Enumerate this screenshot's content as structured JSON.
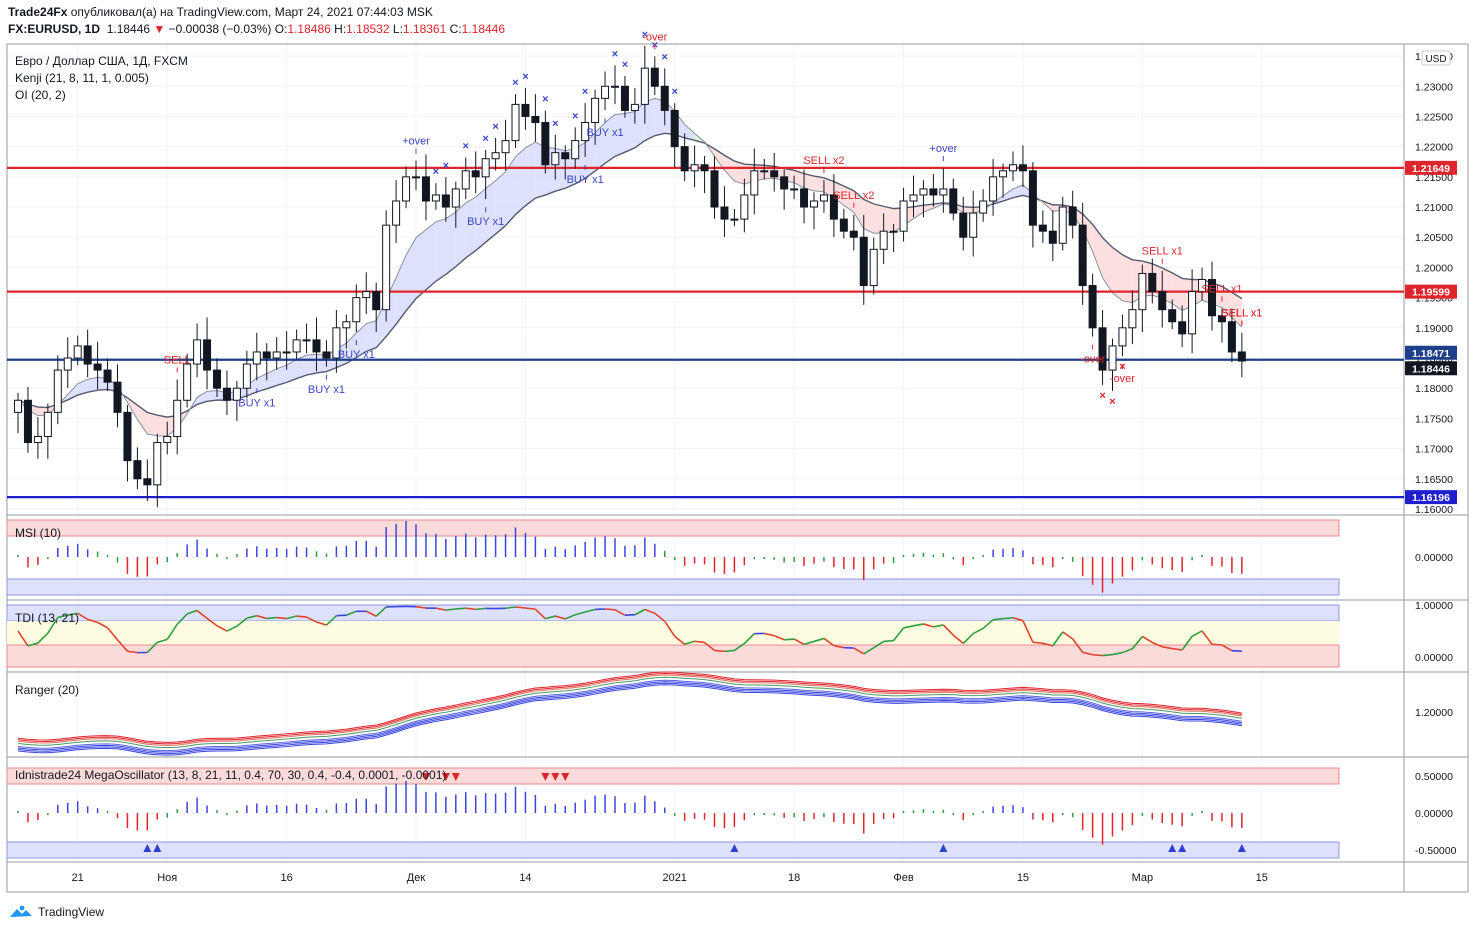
{
  "header": {
    "author": "Trade24Fx",
    "published_text": " опубликовал(а) на TradingView.com, Март 24, 2021 07:44:03 MSK",
    "symbol": "FX:EURUSD, 1D",
    "last": "1.18446",
    "change_arrow": "▼",
    "change": "−0.00038 (−0.03%)",
    "o_label": "O:",
    "o": "1.18486",
    "h_label": "H:",
    "h": "1.18532",
    "l_label": "L:",
    "l": "1.18361",
    "c_label": "C:",
    "c": "1.18446"
  },
  "legend": {
    "title": "Евро / Доллар США, 1Д, FXCM",
    "kenji": "Kenji (21, 8, 11, 1, 0.005)",
    "oi": "OI (20, 2)"
  },
  "currency_button": "USD",
  "price_axis_ticks": [
    "1.23500",
    "1.23000",
    "1.22500",
    "1.22000",
    "1.21500",
    "1.21000",
    "1.20500",
    "1.20000",
    "1.19500",
    "1.19000",
    "1.18500",
    "1.18000",
    "1.17500",
    "1.17000",
    "1.16500",
    "1.16000"
  ],
  "price_labels": [
    {
      "text": "1.21649",
      "color": "#e0242c"
    },
    {
      "text": "1.19599",
      "color": "#e0242c"
    },
    {
      "text": "1.18471",
      "color": "#1e3f8a"
    },
    {
      "text": "1.18446",
      "color": "#131722"
    },
    {
      "text": "1.16196",
      "color": "#1f1fd0"
    }
  ],
  "chart_annotations": [
    "SELL",
    "BUY x1",
    "BUY x1",
    "+over",
    "BUY x1",
    "BUY x1",
    "BUY x1",
    "BUY x1",
    "-over",
    "SELL x2",
    "SELL x2",
    "+over",
    "SELL x1",
    "-over",
    "-over",
    "SELL x1",
    "SELL x1",
    "SELL x1"
  ],
  "panes": {
    "msi": {
      "label": "MSI (10)",
      "tick": "0.00000"
    },
    "tdi": {
      "label": "TDI (13, 21)",
      "ticks": [
        "1.00000",
        "0.00000"
      ]
    },
    "ranger": {
      "label": "Ranger (20)",
      "tick": "1.20000"
    },
    "mega": {
      "label": "Idnistrade24 MegaOscillator (13, 8, 21, 11, 0.4, 70, 30, 0.4, -0.4, 0.0001, -0.0001)",
      "ticks": [
        "0.50000",
        "0.00000",
        "-0.50000"
      ]
    }
  },
  "time_axis": [
    "21",
    "Ноя",
    "16",
    "Дек",
    "14",
    "2021",
    "18",
    "Фев",
    "15",
    "Мар",
    "15"
  ],
  "footer": {
    "brand": "TradingView"
  },
  "colors": {
    "red": "#e0242c",
    "blue": "#1f1fd0",
    "navy": "#1e3f8a",
    "green": "#2e9e3e"
  },
  "chart_data": [
    {
      "type": "candlestick",
      "title": "Евро / Доллар США, 1Д, FXCM",
      "ylim": [
        1.159,
        1.237
      ],
      "horizontal_levels": [
        1.21649,
        1.19599,
        1.18471,
        1.16196
      ],
      "last_close": 1.18446,
      "closes": [
        1.178,
        1.171,
        1.172,
        1.176,
        1.183,
        1.185,
        1.187,
        1.184,
        1.183,
        1.181,
        1.176,
        1.168,
        1.165,
        1.164,
        1.171,
        1.172,
        1.178,
        1.184,
        1.188,
        1.183,
        1.18,
        1.178,
        1.18,
        1.184,
        1.186,
        1.185,
        1.186,
        1.186,
        1.188,
        1.188,
        1.186,
        1.185,
        1.19,
        1.191,
        1.195,
        1.196,
        1.193,
        1.207,
        1.211,
        1.215,
        1.215,
        1.211,
        1.212,
        1.21,
        1.213,
        1.216,
        1.215,
        1.218,
        1.219,
        1.221,
        1.227,
        1.225,
        1.224,
        1.217,
        1.219,
        1.218,
        1.221,
        1.224,
        1.228,
        1.23,
        1.23,
        1.226,
        1.227,
        1.233,
        1.23,
        1.226,
        1.22,
        1.216,
        1.217,
        1.216,
        1.21,
        1.208,
        1.208,
        1.212,
        1.216,
        1.216,
        1.215,
        1.213,
        1.213,
        1.21,
        1.211,
        1.212,
        1.208,
        1.206,
        1.205,
        1.197,
        1.203,
        1.206,
        1.206,
        1.211,
        1.212,
        1.213,
        1.212,
        1.213,
        1.209,
        1.205,
        1.209,
        1.211,
        1.215,
        1.216,
        1.217,
        1.216,
        1.207,
        1.206,
        1.204,
        1.21,
        1.207,
        1.197,
        1.19,
        1.183,
        1.187,
        1.19,
        1.193,
        1.199,
        1.196,
        1.193,
        1.191,
        1.189,
        1.196,
        1.198,
        1.192,
        1.191,
        1.186,
        1.1845
      ],
      "indicators": [
        "Kenji (21, 8, 11, 1, 0.005)",
        "OI (20, 2)",
        "MSI (10)",
        "TDI (13, 21)",
        "Ranger (20)",
        "Idnistrade24 MegaOscillator"
      ]
    }
  ]
}
